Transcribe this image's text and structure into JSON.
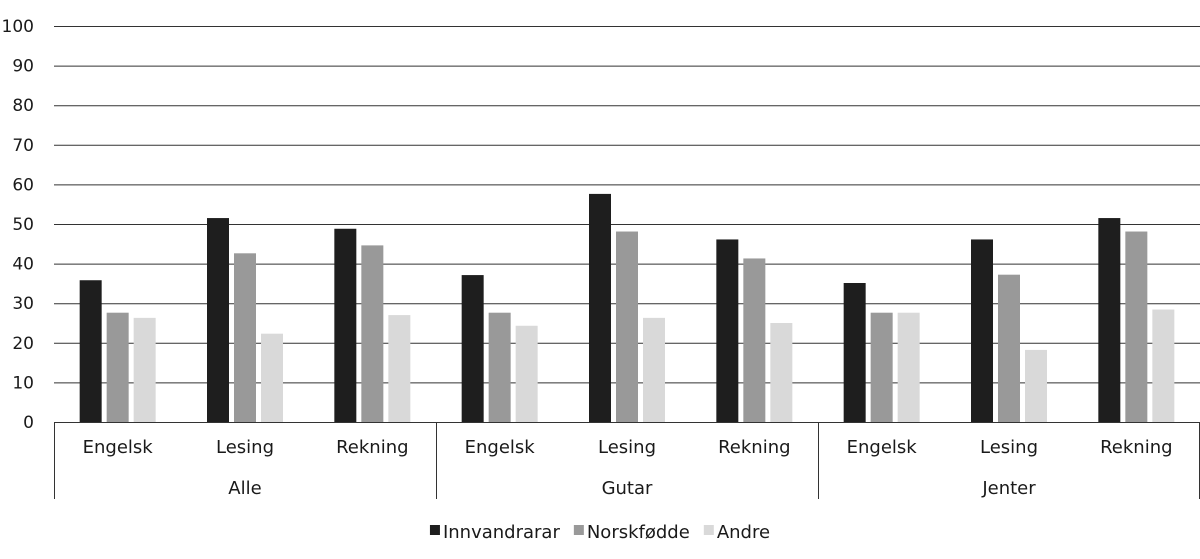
{
  "chart_data": {
    "type": "bar",
    "title": "",
    "xlabel": "",
    "ylabel": "",
    "ylim": [
      0,
      100
    ],
    "yticks": [
      0,
      10,
      20,
      30,
      40,
      50,
      60,
      70,
      80,
      90,
      100
    ],
    "grid": true,
    "legend_position": "bottom-center",
    "groups": [
      {
        "label": "Alle",
        "categories": [
          "Engelsk",
          "Lesing",
          "Rekning"
        ]
      },
      {
        "label": "Gutar",
        "categories": [
          "Engelsk",
          "Lesing",
          "Rekning"
        ]
      },
      {
        "label": "Jenter",
        "categories": [
          "Engelsk",
          "Lesing",
          "Rekning"
        ]
      }
    ],
    "series": [
      {
        "name": "Innvandrarar",
        "color": "#1e1e1e",
        "values": [
          35.8,
          51.5,
          48.8,
          37.1,
          57.6,
          46.1,
          35.1,
          46.1,
          51.5
        ]
      },
      {
        "name": "Norskfødde",
        "color": "#999999",
        "values": [
          27.6,
          42.6,
          44.6,
          27.6,
          48.1,
          41.3,
          27.6,
          37.2,
          48.1
        ]
      },
      {
        "name": "Andre",
        "color": "#d9d9d9",
        "values": [
          26.3,
          22.3,
          27.0,
          24.3,
          26.3,
          25.0,
          27.6,
          18.2,
          28.4
        ]
      }
    ]
  }
}
